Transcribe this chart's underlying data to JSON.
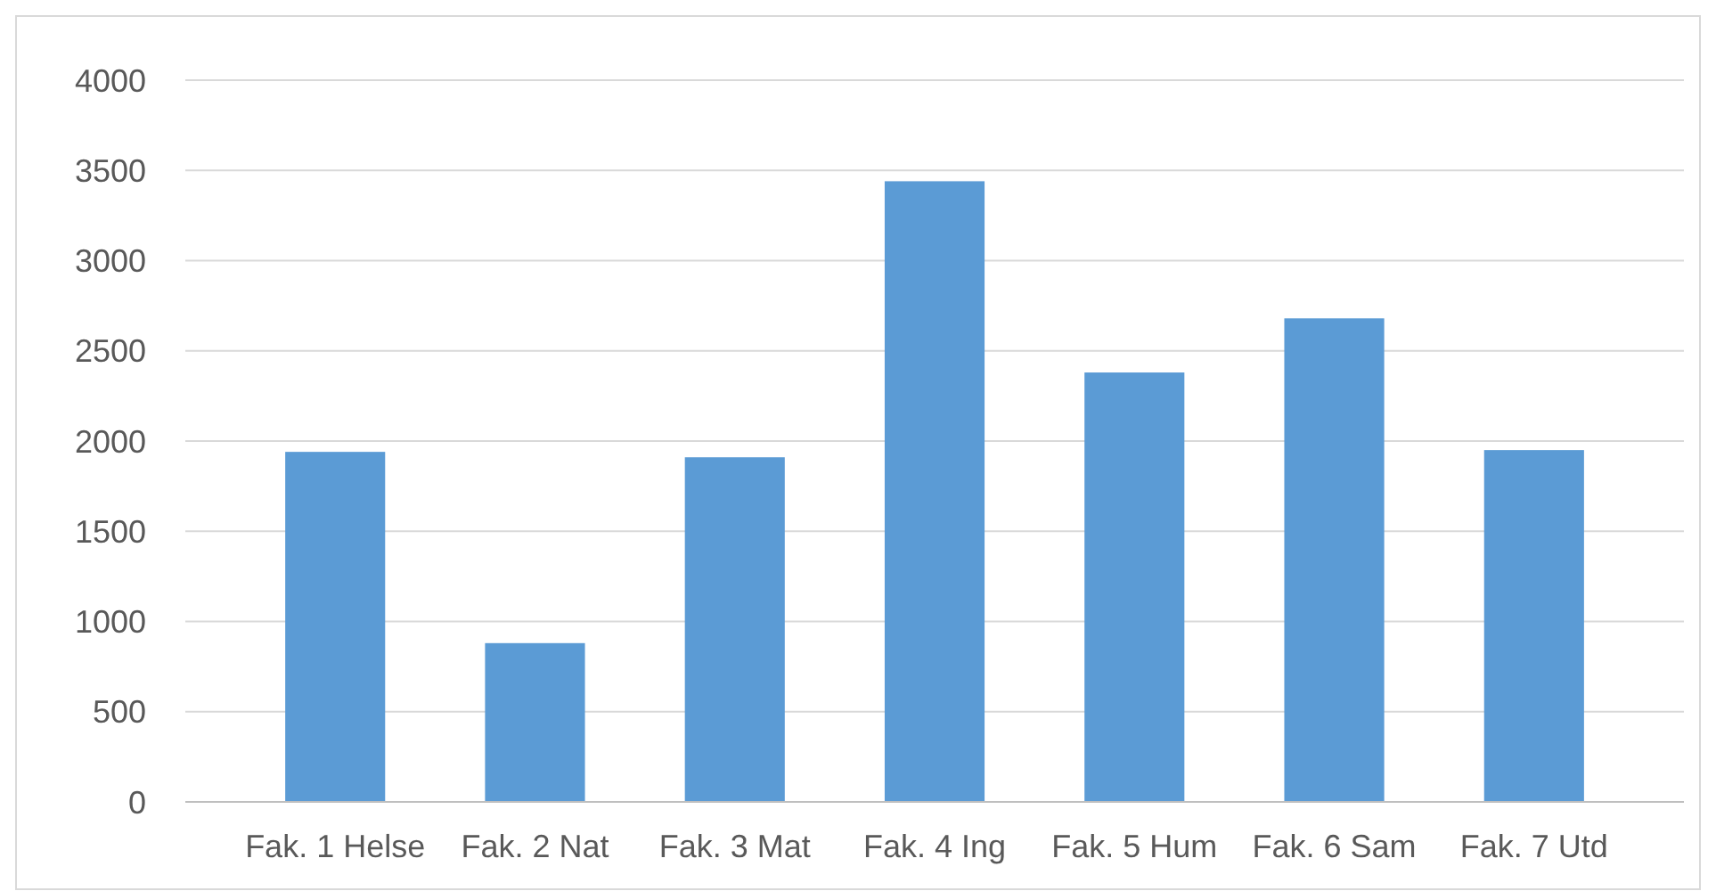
{
  "chart_data": {
    "type": "bar",
    "categories": [
      "Fak. 1 Helse",
      "Fak. 2 Nat",
      "Fak. 3 Mat",
      "Fak. 4 Ing",
      "Fak. 5 Hum",
      "Fak. 6 Sam",
      "Fak. 7 Utd"
    ],
    "values": [
      1940,
      880,
      1910,
      3440,
      2380,
      2680,
      1950
    ],
    "color": "#5b9bd5",
    "ylim": [
      0,
      4000
    ],
    "yticks": [
      0,
      500,
      1000,
      1500,
      2000,
      2500,
      3000,
      3500,
      4000
    ],
    "grid": "y"
  }
}
